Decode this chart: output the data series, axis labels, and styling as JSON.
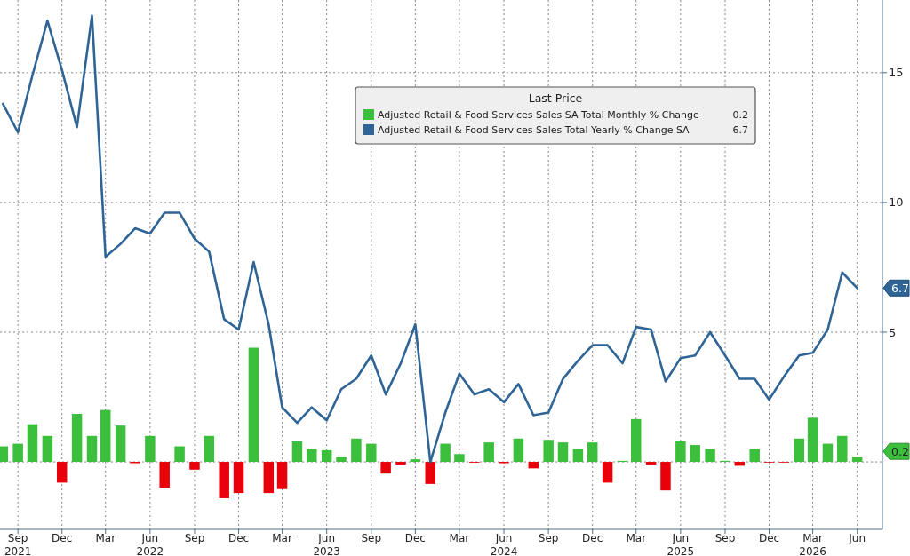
{
  "chart_data": {
    "type": "bar",
    "x": [
      "2021-08",
      "2021-09",
      "2021-10",
      "2021-11",
      "2021-12",
      "2022-01",
      "2022-02",
      "2022-03",
      "2022-04",
      "2022-05",
      "2022-06",
      "2022-07",
      "2022-08",
      "2022-09",
      "2022-10",
      "2022-11",
      "2022-12",
      "2023-01",
      "2023-02",
      "2023-03",
      "2023-04",
      "2023-05",
      "2023-06",
      "2023-07",
      "2023-08",
      "2023-09",
      "2023-10",
      "2023-11",
      "2023-12",
      "2024-01",
      "2024-02",
      "2024-03",
      "2024-04",
      "2024-05",
      "2024-06",
      "2024-07",
      "2024-08",
      "2024-09",
      "2024-10",
      "2024-11",
      "2024-12",
      "2025-01",
      "2025-02",
      "2025-03",
      "2025-04",
      "2025-05",
      "2025-06",
      "2025-07",
      "2025-08",
      "2025-09",
      "2025-10",
      "2025-11",
      "2025-12",
      "2026-01",
      "2026-02",
      "2026-03",
      "2026-04",
      "2026-05",
      "2026-06"
    ],
    "series": [
      {
        "name": "Adjusted Retail & Food Services Sales SA Total Monthly % Change",
        "color": "#3cbf3c",
        "values": [
          0.6,
          0.7,
          1.45,
          1.0,
          -0.8,
          1.85,
          1.0,
          2.0,
          1.4,
          -0.05,
          1.0,
          -1.0,
          0.6,
          -0.3,
          1.0,
          -1.4,
          -1.2,
          4.4,
          -1.2,
          -1.05,
          0.8,
          0.5,
          0.45,
          0.2,
          0.9,
          0.7,
          -0.45,
          -0.1,
          0.1,
          -0.85,
          0.7,
          0.3,
          -0.03,
          0.75,
          -0.05,
          0.9,
          -0.25,
          0.85,
          0.75,
          0.5,
          0.75,
          -0.8,
          0.04,
          1.65,
          -0.1,
          -1.1,
          0.8,
          0.65,
          0.5,
          0.04,
          -0.15,
          0.5,
          -0.02,
          -0.02,
          0.9,
          1.7,
          0.7,
          1.0,
          0.2
        ],
        "colors": [
          "#3cbf3c",
          "#3cbf3c",
          "#3cbf3c",
          "#3cbf3c",
          "#e8000b",
          "#3cbf3c",
          "#3cbf3c",
          "#3cbf3c",
          "#3cbf3c",
          "#e8000b",
          "#3cbf3c",
          "#e8000b",
          "#3cbf3c",
          "#e8000b",
          "#3cbf3c",
          "#e8000b",
          "#e8000b",
          "#3cbf3c",
          "#e8000b",
          "#e8000b",
          "#3cbf3c",
          "#3cbf3c",
          "#3cbf3c",
          "#3cbf3c",
          "#3cbf3c",
          "#3cbf3c",
          "#e8000b",
          "#e8000b",
          "#3cbf3c",
          "#e8000b",
          "#3cbf3c",
          "#3cbf3c",
          "#e8000b",
          "#3cbf3c",
          "#e8000b",
          "#3cbf3c",
          "#e8000b",
          "#3cbf3c",
          "#3cbf3c",
          "#3cbf3c",
          "#3cbf3c",
          "#e8000b",
          "#3cbf3c",
          "#3cbf3c",
          "#e8000b",
          "#e8000b",
          "#3cbf3c",
          "#3cbf3c",
          "#3cbf3c",
          "#3cbf3c",
          "#e8000b",
          "#3cbf3c",
          "#e8000b",
          "#e8000b",
          "#3cbf3c",
          "#3cbf3c",
          "#3cbf3c",
          "#3cbf3c",
          "#3cbf3c"
        ]
      },
      {
        "name": "Adjusted Retail & Food Services Sales Total Yearly % Change SA",
        "type": "line",
        "color": "#2f6496",
        "values": [
          13.8,
          12.7,
          14.9,
          17.0,
          15.1,
          12.9,
          17.2,
          7.9,
          8.4,
          9.0,
          8.8,
          9.6,
          9.6,
          8.6,
          8.1,
          5.5,
          5.1,
          7.7,
          5.3,
          2.1,
          1.5,
          2.1,
          1.6,
          2.8,
          3.2,
          4.1,
          2.6,
          3.8,
          5.3,
          0.0,
          1.9,
          3.4,
          2.6,
          2.8,
          2.3,
          3.0,
          1.8,
          1.9,
          3.2,
          3.9,
          4.5,
          4.5,
          3.8,
          5.2,
          5.1,
          3.1,
          4.0,
          4.1,
          5.0,
          4.1,
          3.2,
          3.2,
          2.4,
          3.3,
          4.1,
          4.2,
          5.1,
          7.3,
          6.7
        ]
      }
    ],
    "legend_title": "Last Price",
    "legend": "top",
    "annotations": [
      "0.2",
      "6.7",
      "0.2",
      "6.7"
    ],
    "xlim": [
      "2021-07-26",
      "2026-07-23"
    ],
    "xticks": [
      {
        "value": "2021-09",
        "label": "Sep\n2021"
      },
      {
        "value": "2021-12",
        "label": "Dec"
      },
      {
        "value": "2022-03",
        "label": "Mar"
      },
      {
        "value": "2022-06",
        "label": "Jun\n2022"
      },
      {
        "value": "2022-09",
        "label": "Sep"
      },
      {
        "value": "2022-12",
        "label": "Dec"
      },
      {
        "value": "2023-03",
        "label": "Mar"
      },
      {
        "value": "2023-06",
        "label": "Jun\n2023"
      },
      {
        "value": "2023-09",
        "label": "Sep"
      },
      {
        "value": "2023-12",
        "label": "Dec"
      },
      {
        "value": "2024-03",
        "label": "Mar"
      },
      {
        "value": "2024-06",
        "label": "Jun\n2024"
      },
      {
        "value": "2024-09",
        "label": "Sep"
      },
      {
        "value": "2024-12",
        "label": "Dec"
      },
      {
        "value": "2025-03",
        "label": "Mar"
      },
      {
        "value": "2025-06",
        "label": "Jun\n2025"
      },
      {
        "value": "2025-09",
        "label": "Sep"
      },
      {
        "value": "2025-12",
        "label": "Dec"
      },
      {
        "value": "2026-03",
        "label": "Mar\n2026"
      },
      {
        "value": "2026-06",
        "label": "Jun"
      }
    ],
    "ylim": [
      -2.6,
      17.8
    ],
    "yticks": [
      5,
      10,
      15
    ],
    "grid": true
  }
}
